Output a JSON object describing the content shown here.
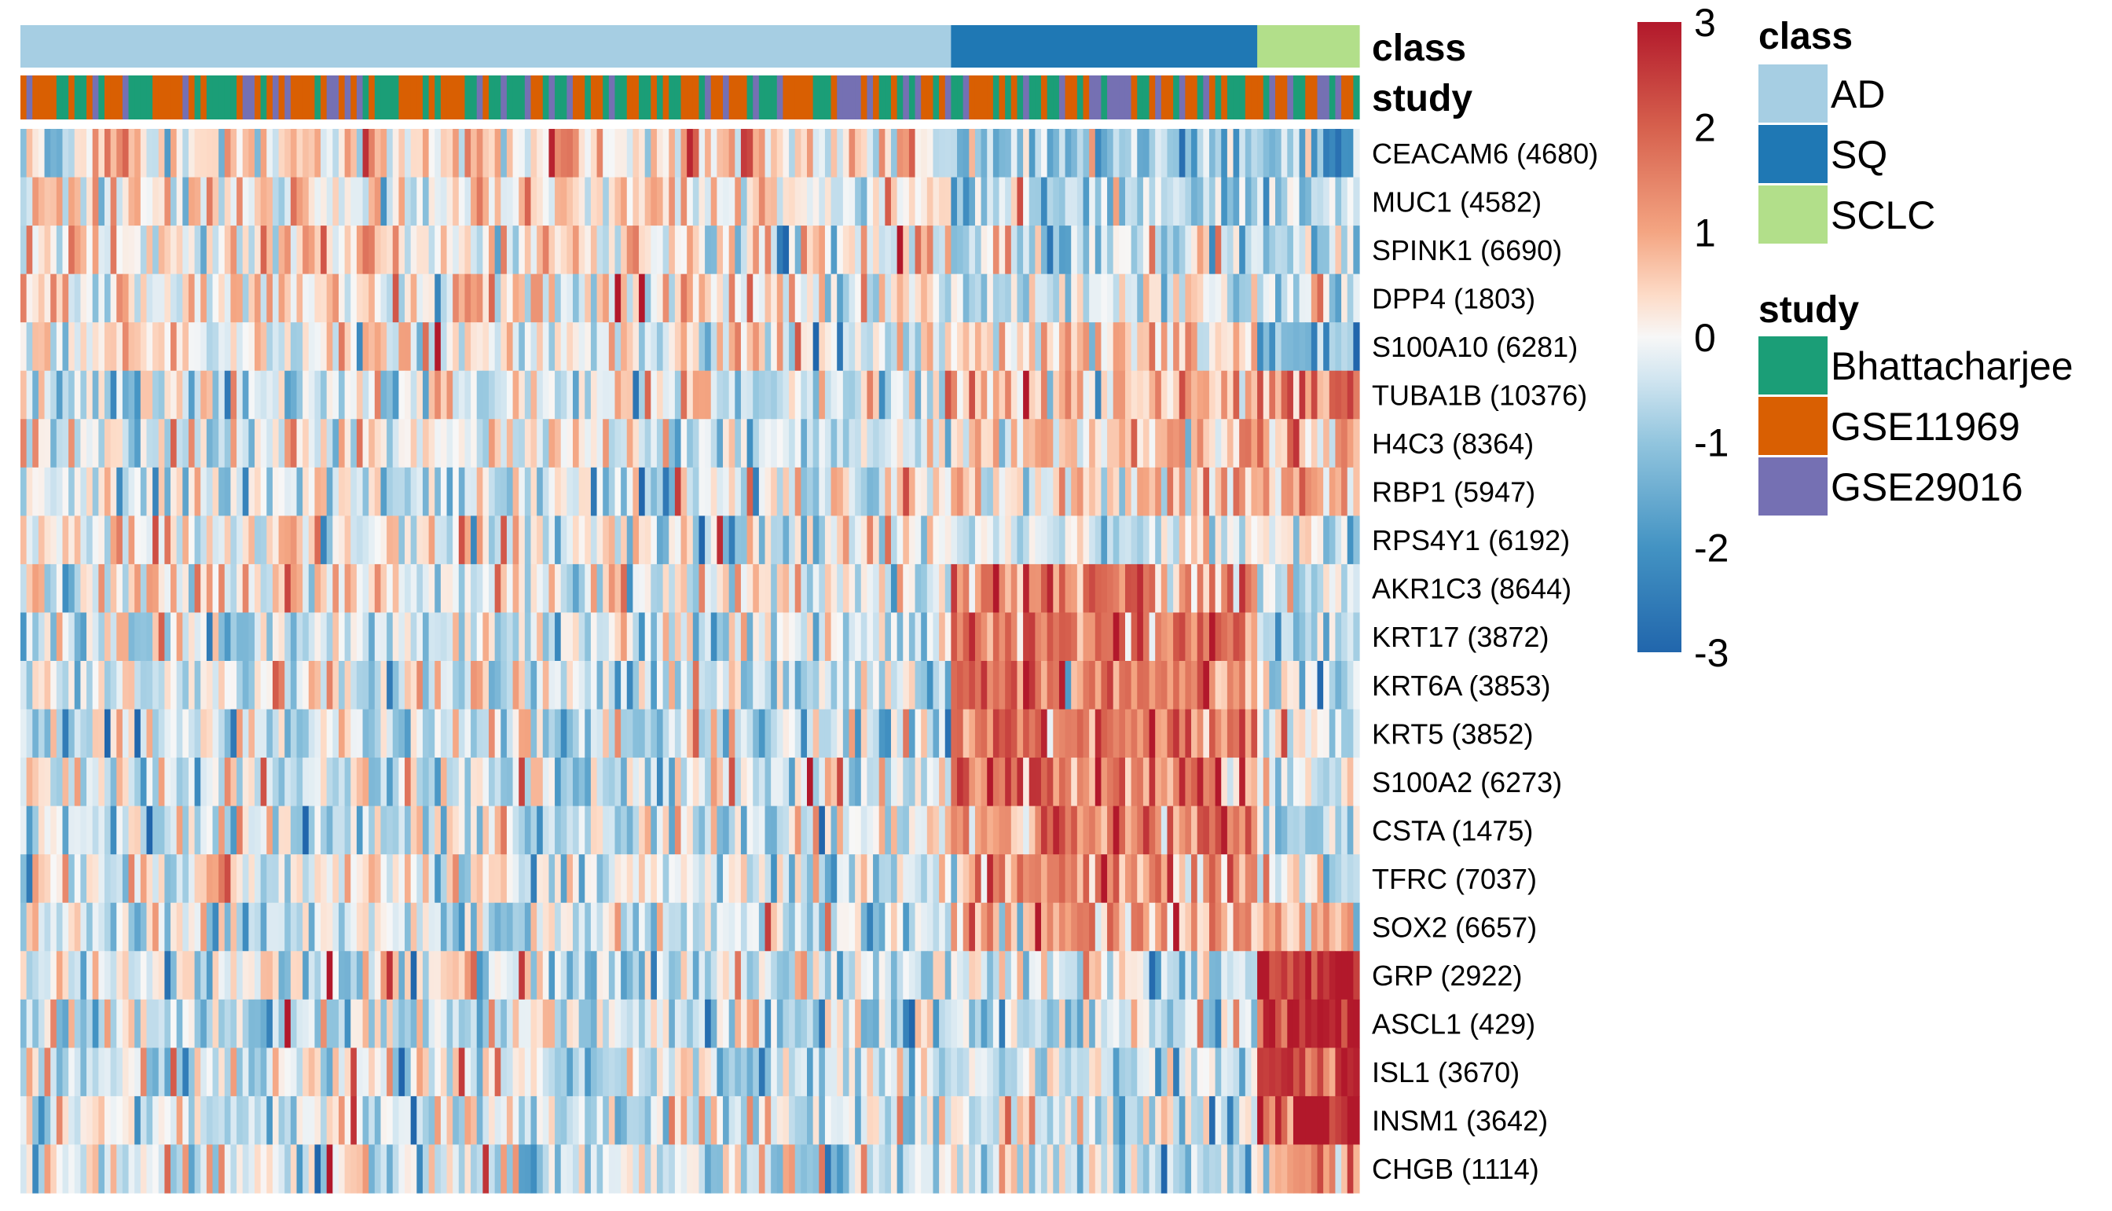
{
  "chart_data": {
    "type": "heatmap",
    "title": "",
    "annotations": [
      {
        "name": "class",
        "label": "class"
      },
      {
        "name": "study",
        "label": "study"
      }
    ],
    "rows": [
      "CEACAM6 (4680)",
      "MUC1 (4582)",
      "SPINK1 (6690)",
      "DPP4 (1803)",
      "S100A10 (6281)",
      "TUBA1B (10376)",
      "H4C3 (8364)",
      "RBP1 (5947)",
      "RPS4Y1 (6192)",
      "AKR1C3 (8644)",
      "KRT17 (3872)",
      "KRT6A (3853)",
      "KRT5 (3852)",
      "S100A2 (6273)",
      "CSTA (1475)",
      "TFRC (7037)",
      "SOX2 (6657)",
      "GRP (2922)",
      "ASCL1 (429)",
      "ISL1 (3670)",
      "INSM1 (3642)",
      "CHGB (1114)"
    ],
    "column_groups": [
      {
        "class": "AD",
        "columns": 155
      },
      {
        "class": "SQ",
        "columns": 51
      },
      {
        "class": "SCLC",
        "columns": 17
      }
    ],
    "row_group_pattern": [
      {
        "AD": 0.4,
        "SQ": -1.0,
        "SCLC": -1.3
      },
      {
        "AD": 0.2,
        "SQ": -0.9,
        "SCLC": -0.8
      },
      {
        "AD": 0.3,
        "SQ": -0.6,
        "SCLC": -0.7
      },
      {
        "AD": 0.3,
        "SQ": -0.5,
        "SCLC": -0.6
      },
      {
        "AD": 0.1,
        "SQ": 0.2,
        "SCLC": -1.6
      },
      {
        "AD": -0.3,
        "SQ": 0.8,
        "SCLC": 1.4
      },
      {
        "AD": -0.2,
        "SQ": 0.7,
        "SCLC": 1.0
      },
      {
        "AD": -0.2,
        "SQ": 0.6,
        "SCLC": 0.9
      },
      {
        "AD": 0.1,
        "SQ": -0.2,
        "SCLC": -0.3
      },
      {
        "AD": 0.0,
        "SQ": 1.3,
        "SCLC": -0.5
      },
      {
        "AD": -0.4,
        "SQ": 1.6,
        "SCLC": -0.5
      },
      {
        "AD": -0.4,
        "SQ": 1.6,
        "SCLC": -0.5
      },
      {
        "AD": -0.4,
        "SQ": 1.7,
        "SCLC": -0.5
      },
      {
        "AD": -0.3,
        "SQ": 1.5,
        "SCLC": -0.4
      },
      {
        "AD": -0.3,
        "SQ": 1.4,
        "SCLC": -0.5
      },
      {
        "AD": -0.2,
        "SQ": 1.2,
        "SCLC": -0.3
      },
      {
        "AD": -0.3,
        "SQ": 1.0,
        "SCLC": 1.0
      },
      {
        "AD": -0.3,
        "SQ": -0.3,
        "SCLC": 2.6
      },
      {
        "AD": -0.3,
        "SQ": -0.3,
        "SCLC": 2.6
      },
      {
        "AD": -0.3,
        "SQ": -0.3,
        "SCLC": 2.5
      },
      {
        "AD": -0.3,
        "SQ": -0.3,
        "SCLC": 2.6
      },
      {
        "AD": -0.2,
        "SQ": -0.3,
        "SCLC": 1.6
      }
    ],
    "value_range": [
      -3,
      3
    ],
    "color_scale": {
      "ticks": [
        3,
        2,
        1,
        0,
        -1,
        -2,
        -3
      ],
      "tick_labels": [
        "3",
        "2",
        "1",
        "0",
        "-1",
        "-2",
        "-3"
      ],
      "stops": [
        {
          "value": -3,
          "color": "#2166ac"
        },
        {
          "value": -2,
          "color": "#4393c3"
        },
        {
          "value": -1,
          "color": "#92c5de"
        },
        {
          "value": -0.4,
          "color": "#d1e5f0"
        },
        {
          "value": 0,
          "color": "#f7f7f7"
        },
        {
          "value": 0.4,
          "color": "#fddbc7"
        },
        {
          "value": 1,
          "color": "#f4a582"
        },
        {
          "value": 2,
          "color": "#d6604d"
        },
        {
          "value": 3,
          "color": "#b2182b"
        }
      ]
    },
    "legend": {
      "class": {
        "title": "class",
        "items": [
          {
            "label": "AD",
            "color": "#a6cee3"
          },
          {
            "label": "SQ",
            "color": "#1f78b4"
          },
          {
            "label": "SCLC",
            "color": "#b2df8a"
          }
        ]
      },
      "study": {
        "title": "study",
        "items": [
          {
            "label": "Bhattacharjee",
            "color": "#1b9e77"
          },
          {
            "label": "GSE11969",
            "color": "#d95f02"
          },
          {
            "label": "GSE29016",
            "color": "#7570b3"
          }
        ]
      }
    }
  }
}
